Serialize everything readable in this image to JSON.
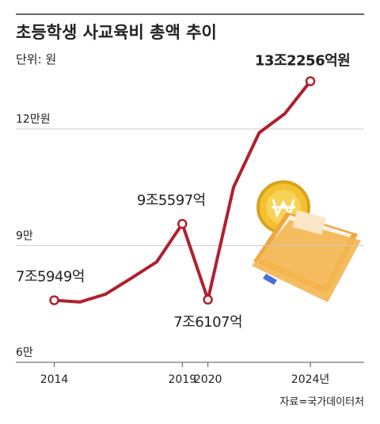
{
  "chart_data": {
    "type": "line",
    "title": "초등학생 사교육비 총액 추이",
    "unit_label": "단위: 원",
    "source": "자료=국가데이터처",
    "x": [
      2014,
      2015,
      2016,
      2017,
      2018,
      2019,
      2020,
      2021,
      2022,
      2023,
      2024
    ],
    "series": [
      {
        "name": "초등학생 사교육비 총액",
        "color": "#b01f2e",
        "values": [
          75949,
          75500,
          77500,
          81600,
          85800,
          95597,
          76107,
          105000,
          119000,
          123900,
          132256
        ],
        "value_labels": [
          "7조5949억",
          null,
          null,
          null,
          null,
          "9조5597억",
          "7조6107억",
          null,
          null,
          null,
          "13조2256억원"
        ]
      }
    ],
    "xlim": [
      2012.5,
      2026.1
    ],
    "xticks": [
      2014,
      2019,
      2020,
      {
        "value": 2024,
        "label": "2024년"
      }
    ],
    "ylim": [
      60000,
      145000
    ],
    "yticks": [
      {
        "value": 60000,
        "label": "6만"
      },
      {
        "value": 90000,
        "label": "9만"
      },
      {
        "value": 120000,
        "label": "12만원"
      }
    ],
    "grid": true
  }
}
